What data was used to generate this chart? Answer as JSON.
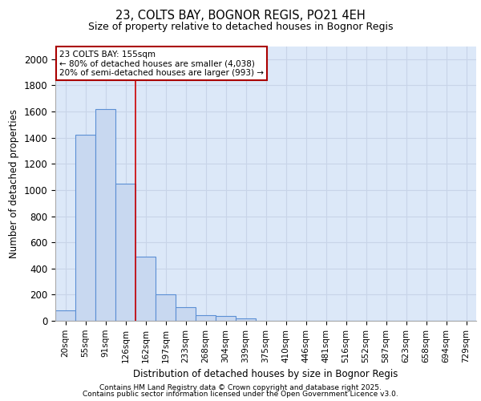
{
  "title": "23, COLTS BAY, BOGNOR REGIS, PO21 4EH",
  "subtitle": "Size of property relative to detached houses in Bognor Regis",
  "xlabel": "Distribution of detached houses by size in Bognor Regis",
  "ylabel": "Number of detached properties",
  "categories": [
    "20sqm",
    "55sqm",
    "91sqm",
    "126sqm",
    "162sqm",
    "197sqm",
    "233sqm",
    "268sqm",
    "304sqm",
    "339sqm",
    "375sqm",
    "410sqm",
    "446sqm",
    "481sqm",
    "516sqm",
    "552sqm",
    "587sqm",
    "623sqm",
    "658sqm",
    "694sqm",
    "729sqm"
  ],
  "values": [
    80,
    1420,
    1620,
    1050,
    490,
    205,
    105,
    40,
    35,
    20,
    0,
    0,
    0,
    0,
    0,
    0,
    0,
    0,
    0,
    0,
    0
  ],
  "bar_color": "#c8d8f0",
  "bar_edge_color": "#5b8fd4",
  "annotation_label": "23 COLTS BAY: 155sqm",
  "annotation_line1": "← 80% of detached houses are smaller (4,038)",
  "annotation_line2": "20% of semi-detached houses are larger (993) →",
  "annotation_box_color": "#ffffff",
  "annotation_box_edge": "#aa0000",
  "vline_color": "#cc0000",
  "vline_x_index": 3.5,
  "ylim": [
    0,
    2100
  ],
  "yticks": [
    0,
    200,
    400,
    600,
    800,
    1000,
    1200,
    1400,
    1600,
    1800,
    2000
  ],
  "grid_color": "#c8d4e8",
  "bg_color": "#dce8f8",
  "footer1": "Contains HM Land Registry data © Crown copyright and database right 2025.",
  "footer2": "Contains public sector information licensed under the Open Government Licence v3.0."
}
